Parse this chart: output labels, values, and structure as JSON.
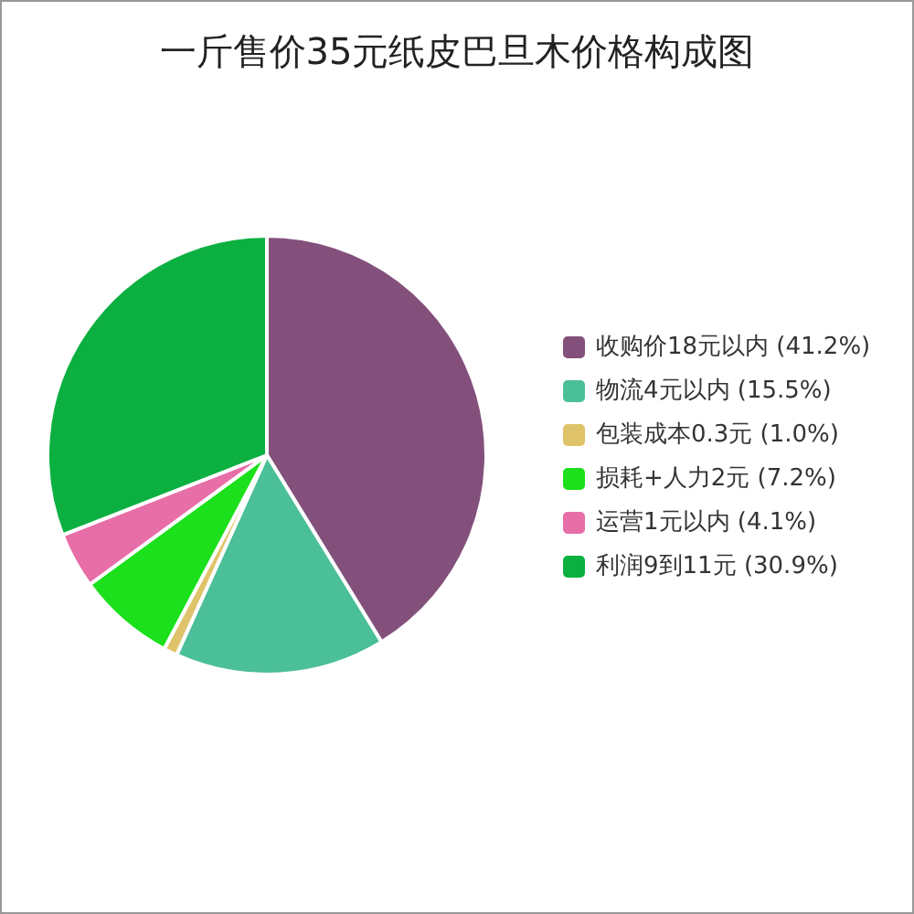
{
  "chart_data": {
    "type": "pie",
    "title": "一斤售价35元纸皮巴旦木价格构成图",
    "categories": [
      "收购价18元以内 (41.2%)",
      "物流4元以内 (15.5%)",
      "包装成本0.3元 (1.0%)",
      "损耗+人力2元 (7.2%)",
      "运营1元以内 (4.1%)",
      "利润9到11元 (30.9%)"
    ],
    "values": [
      41.2,
      15.5,
      1.0,
      7.2,
      4.1,
      30.9
    ],
    "colors": [
      "#83507c",
      "#4bbf98",
      "#dfc36a",
      "#1be01b",
      "#e86ea8",
      "#0bb040"
    ],
    "legend": "right"
  }
}
